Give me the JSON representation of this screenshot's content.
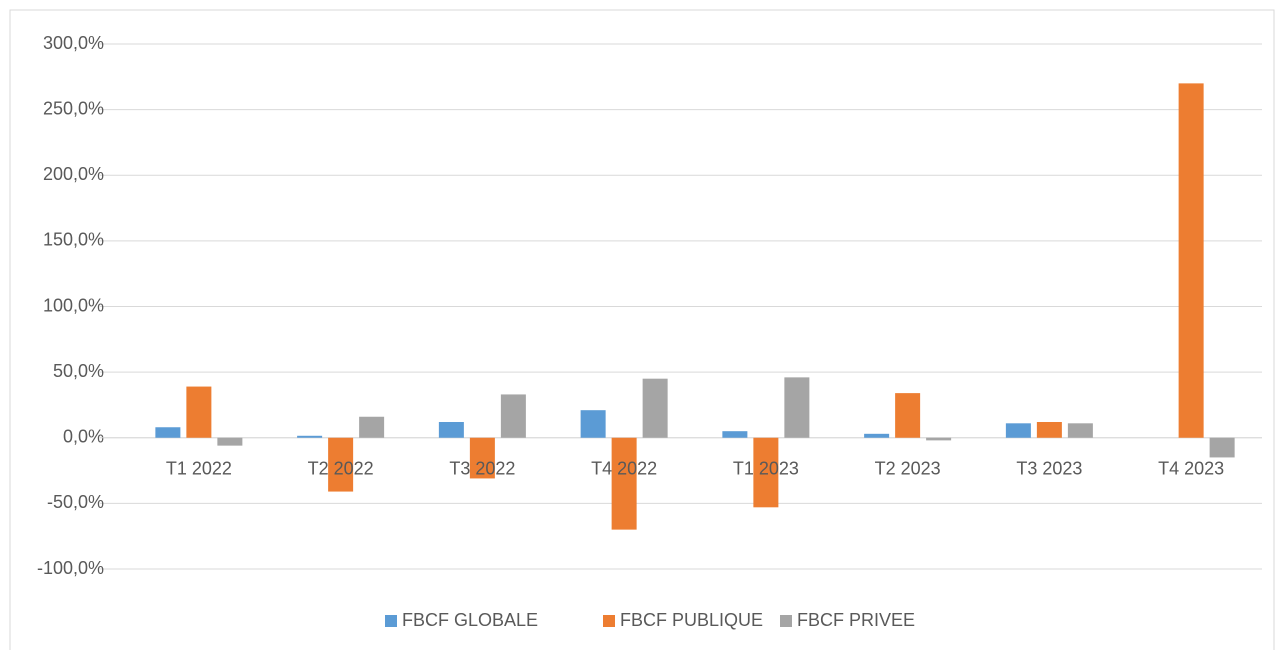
{
  "chart_data": {
    "type": "bar",
    "categories": [
      "T1 2022",
      "T2 2022",
      "T3 2022",
      "T4 2022",
      "T1 2023",
      "T2 2023",
      "T3 2023",
      "T4 2023"
    ],
    "series": [
      {
        "name": "FBCF GLOBALE",
        "color": "#5b9bd5",
        "values": [
          8,
          1.5,
          12,
          21,
          5,
          3,
          11,
          0
        ]
      },
      {
        "name": "FBCF PUBLIQUE",
        "color": "#ed7d31",
        "values": [
          39,
          -41,
          -31,
          -70,
          -53,
          34,
          12,
          270
        ]
      },
      {
        "name": "FBCF PRIVEE",
        "color": "#a5a5a5",
        "values": [
          -6,
          16,
          33,
          45,
          46,
          -2,
          11,
          -15
        ]
      }
    ],
    "ylim": [
      -100,
      300
    ],
    "yticks": [
      {
        "value": -100,
        "label": "-100,0%"
      },
      {
        "value": -50,
        "label": "-50,0%"
      },
      {
        "value": 0,
        "label": "0,0%"
      },
      {
        "value": 50,
        "label": "50,0%"
      },
      {
        "value": 100,
        "label": "100,0%"
      },
      {
        "value": 150,
        "label": "150,0%"
      },
      {
        "value": 200,
        "label": "200,0%"
      },
      {
        "value": 250,
        "label": "250,0%"
      },
      {
        "value": 300,
        "label": "300,0%"
      }
    ],
    "grid": true,
    "legend": "bottom"
  }
}
